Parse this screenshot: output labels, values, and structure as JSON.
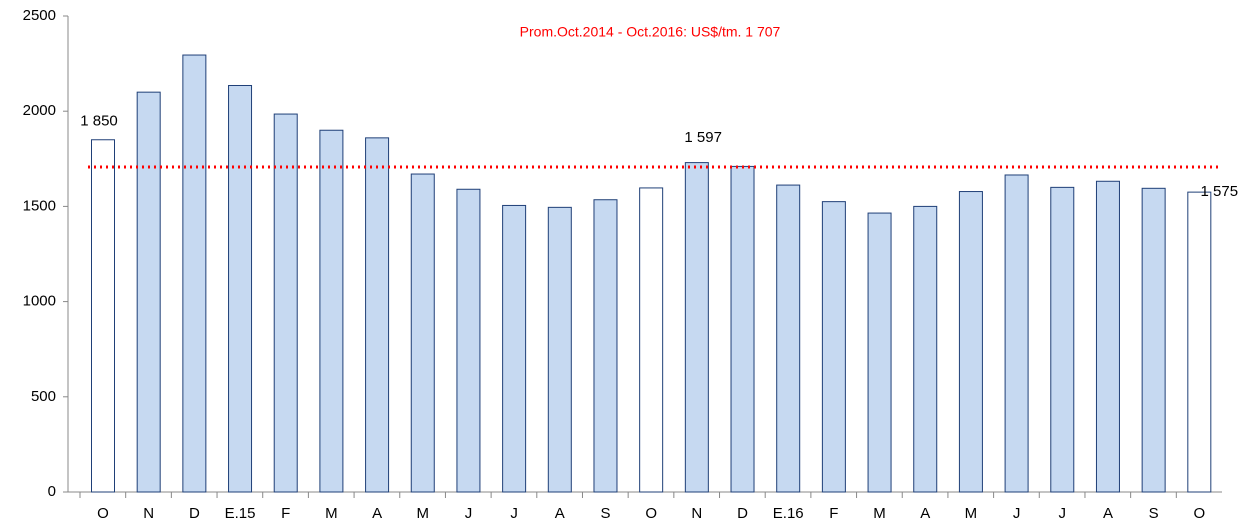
{
  "chart_data": {
    "type": "bar",
    "subtitle": "Prom.Oct.2014 - Oct.2016: US$/tm. 1 707",
    "reference_line": 1707,
    "reference_color": "#ff0000",
    "categories": [
      "O",
      "N",
      "D",
      "E.15",
      "F",
      "M",
      "A",
      "M",
      "J",
      "J",
      "A",
      "S",
      "O",
      "N",
      "D",
      "E.16",
      "F",
      "M",
      "A",
      "M",
      "J",
      "J",
      "A",
      "S",
      "O"
    ],
    "values": [
      1850,
      2100,
      2295,
      2135,
      1985,
      1900,
      1860,
      1670,
      1590,
      1505,
      1495,
      1535,
      1597,
      1730,
      1710,
      1612,
      1525,
      1465,
      1500,
      1578,
      1665,
      1600,
      1632,
      1595,
      1575
    ],
    "value_labels": [
      "1 850",
      null,
      null,
      null,
      null,
      null,
      null,
      null,
      null,
      null,
      null,
      null,
      "1 597",
      null,
      null,
      null,
      null,
      null,
      null,
      null,
      null,
      null,
      null,
      null,
      "1 575"
    ],
    "colors": [
      "#ffffff",
      "#c6d9f1",
      "#c6d9f1",
      "#c6d9f1",
      "#c6d9f1",
      "#c6d9f1",
      "#c6d9f1",
      "#c6d9f1",
      "#c6d9f1",
      "#c6d9f1",
      "#c6d9f1",
      "#c6d9f1",
      "#ffffff",
      "#c6d9f1",
      "#c6d9f1",
      "#c6d9f1",
      "#c6d9f1",
      "#c6d9f1",
      "#c6d9f1",
      "#c6d9f1",
      "#c6d9f1",
      "#c6d9f1",
      "#c6d9f1",
      "#c6d9f1",
      "#ffffff"
    ],
    "ylim": [
      0,
      2500
    ],
    "yticks": [
      0,
      500,
      1000,
      1500,
      2000,
      2500
    ]
  }
}
